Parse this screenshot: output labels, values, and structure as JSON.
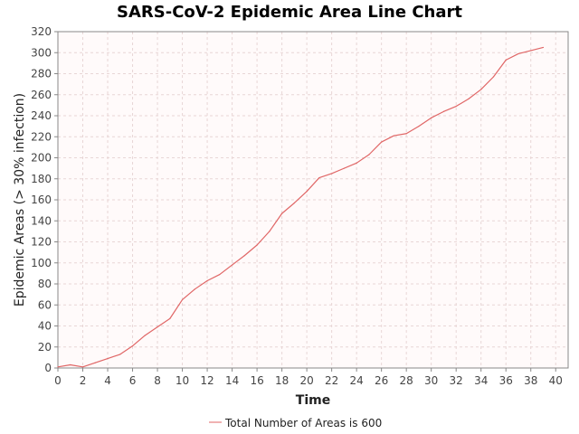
{
  "chart_data": {
    "type": "line",
    "title": "SARS-CoV-2 Epidemic Area Line Chart",
    "xlabel": "Time",
    "ylabel": "Epidemic Areas (> 30% infection)",
    "xlim": [
      0,
      41
    ],
    "ylim": [
      0,
      320
    ],
    "x_ticks": [
      0,
      2,
      4,
      6,
      8,
      10,
      12,
      14,
      16,
      18,
      20,
      22,
      24,
      26,
      28,
      30,
      32,
      34,
      36,
      38,
      40
    ],
    "y_ticks": [
      0,
      20,
      40,
      60,
      80,
      100,
      120,
      140,
      160,
      180,
      200,
      220,
      240,
      260,
      280,
      300,
      320
    ],
    "grid": true,
    "legend_position": "bottom",
    "series": [
      {
        "name": "Total Number of Areas is 600",
        "color": "#e06666",
        "x": [
          0,
          1,
          2,
          3,
          4,
          5,
          6,
          7,
          8,
          9,
          10,
          11,
          12,
          13,
          14,
          15,
          16,
          17,
          18,
          19,
          20,
          21,
          22,
          23,
          24,
          25,
          26,
          27,
          28,
          29,
          30,
          31,
          32,
          33,
          34,
          35,
          36,
          37,
          38,
          39
        ],
        "values": [
          1,
          3,
          1,
          5,
          9,
          13,
          21,
          31,
          39,
          47,
          65,
          75,
          83,
          89,
          98,
          107,
          117,
          130,
          147,
          157,
          168,
          181,
          185,
          190,
          195,
          203,
          215,
          221,
          223,
          230,
          238,
          244,
          249,
          256,
          265,
          277,
          293,
          299,
          302,
          305
        ]
      }
    ],
    "colors": {
      "plot_background": "#fffafa",
      "grid": "#e8d6d6",
      "axis": "#888888"
    }
  }
}
